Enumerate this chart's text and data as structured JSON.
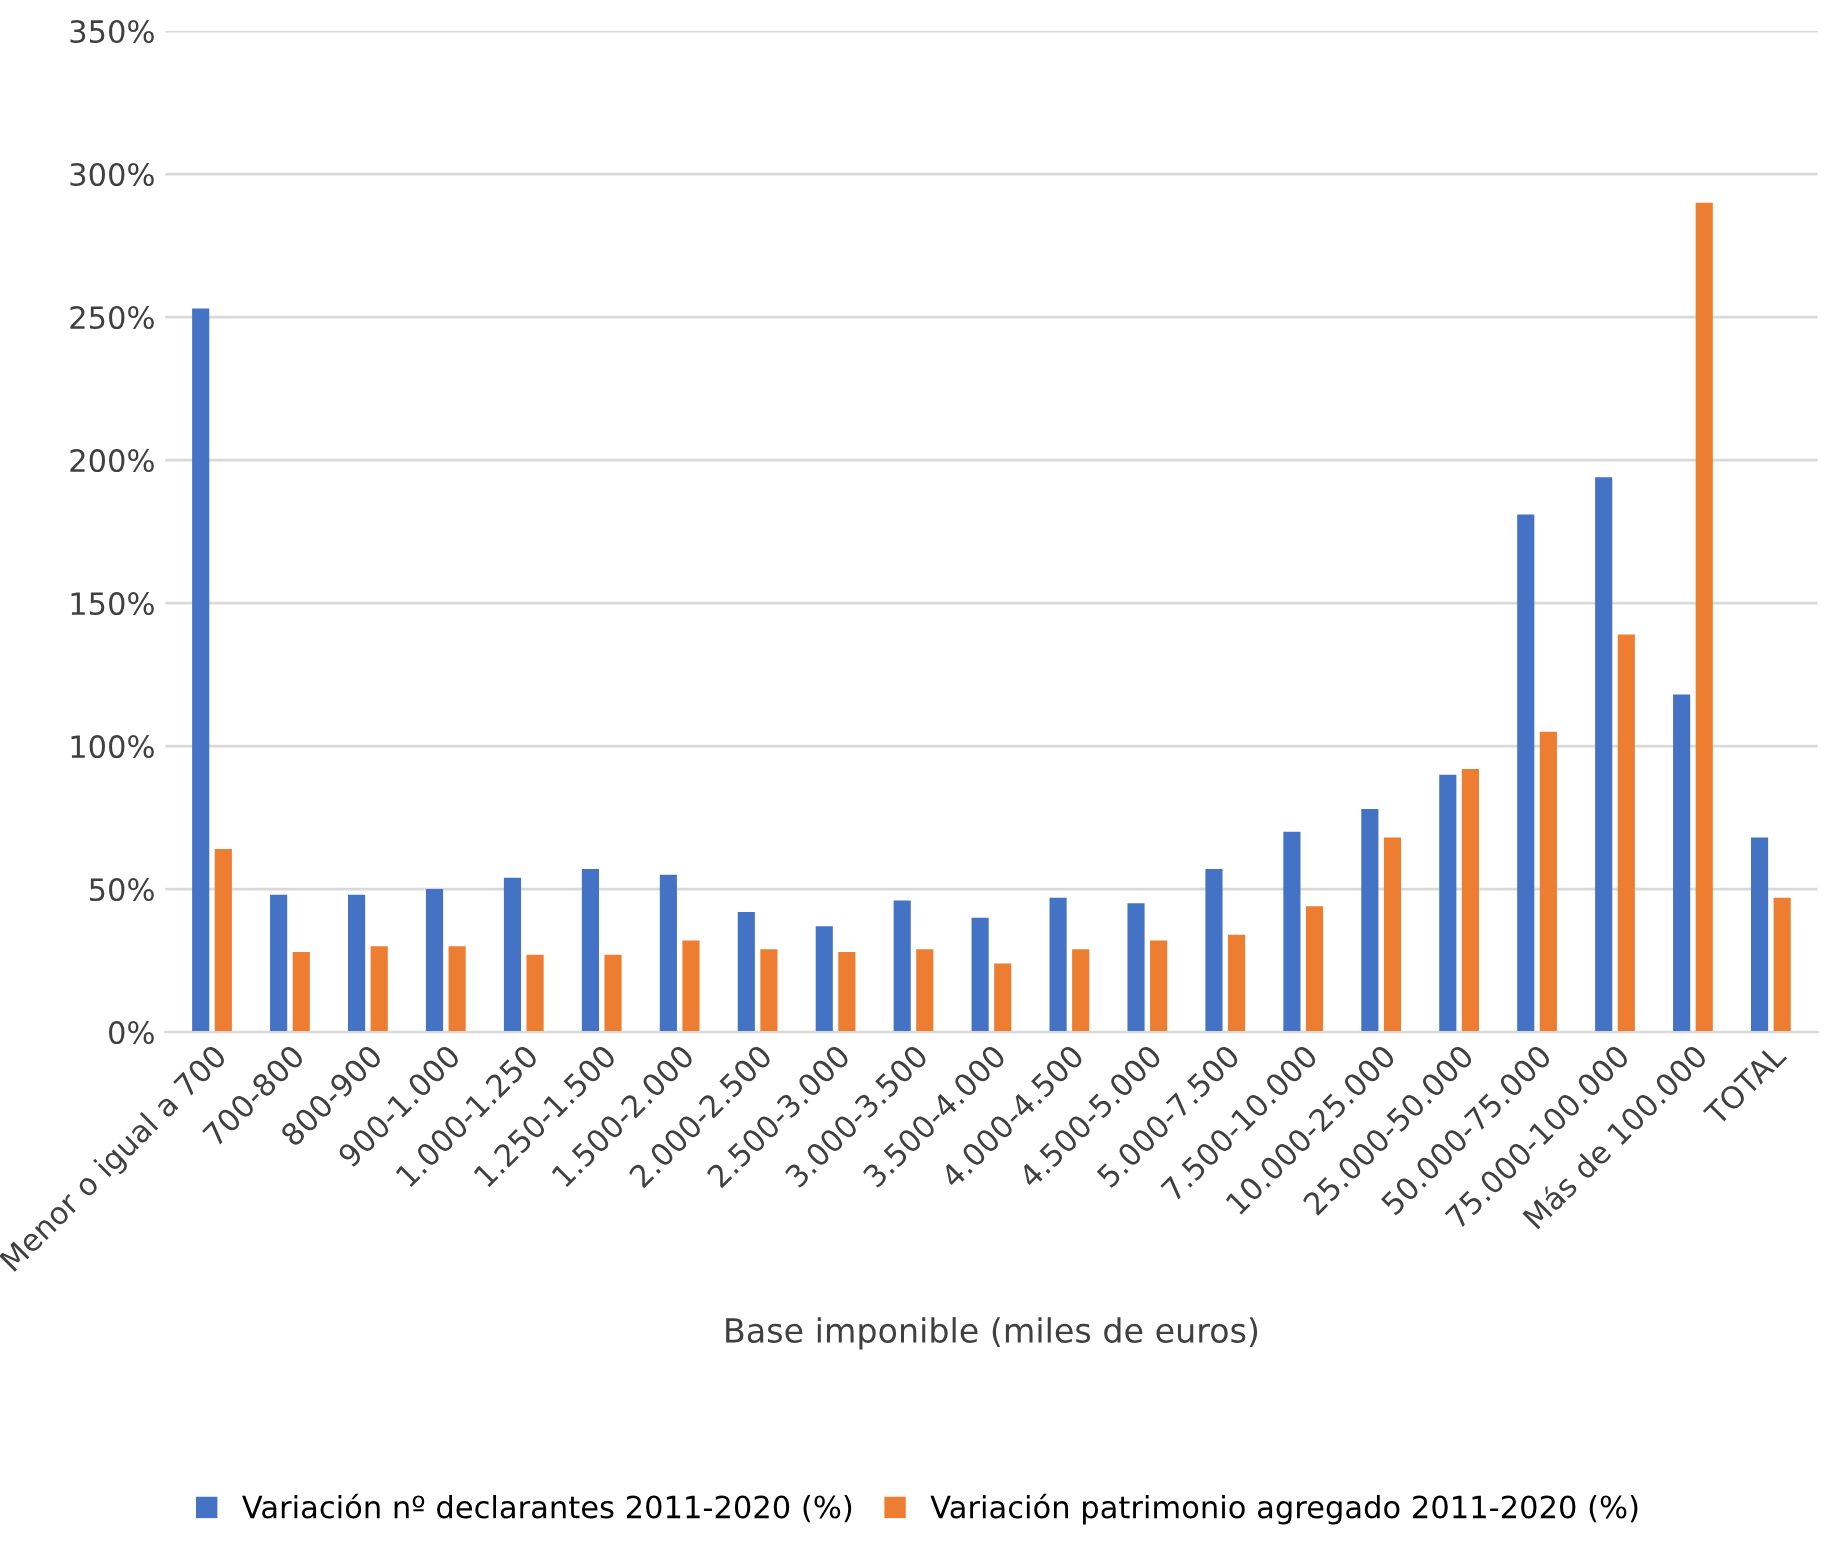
{
  "chart_data": {
    "type": "bar",
    "xlabel": "Base imponible (miles de euros)",
    "categories": [
      "Menor o igual a 700",
      "700-800",
      "800-900",
      "900-1.000",
      "1.000-1.250",
      "1.250-1.500",
      "1.500-2.000",
      "2.000-2.500",
      "2.500-3.000",
      "3.000-3.500",
      "3.500-4.000",
      "4.000-4.500",
      "4.500-5.000",
      "5.000-7.500",
      "7.500-10.000",
      "10.000-25.000",
      "25.000-50.000",
      "50.000-75.000",
      "75.000-100.000",
      "Más de 100.000",
      "TOTAL"
    ],
    "series": [
      {
        "name": "Variación nº declarantes 2011-2020 (%)",
        "color": "#4472c4",
        "values": [
          253,
          48,
          48,
          50,
          54,
          57,
          55,
          42,
          37,
          46,
          40,
          47,
          45,
          57,
          70,
          78,
          90,
          181,
          194,
          118,
          68
        ]
      },
      {
        "name": "Variación patrimonio agregado 2011-2020 (%)",
        "color": "#ed7d31",
        "values": [
          64,
          28,
          30,
          30,
          27,
          27,
          32,
          29,
          28,
          29,
          24,
          29,
          32,
          34,
          44,
          68,
          92,
          105,
          139,
          290,
          47
        ]
      }
    ],
    "ylim": [
      0,
      350
    ],
    "yticks": [
      {
        "value": 0,
        "label": "0%"
      },
      {
        "value": 50,
        "label": "50%"
      },
      {
        "value": 100,
        "label": "100%"
      },
      {
        "value": 150,
        "label": "150%"
      },
      {
        "value": 200,
        "label": "200%"
      },
      {
        "value": 250,
        "label": "250%"
      },
      {
        "value": 300,
        "label": "300%"
      },
      {
        "value": 350,
        "label": "350%"
      }
    ],
    "grid": "y",
    "legend": "bottom"
  }
}
